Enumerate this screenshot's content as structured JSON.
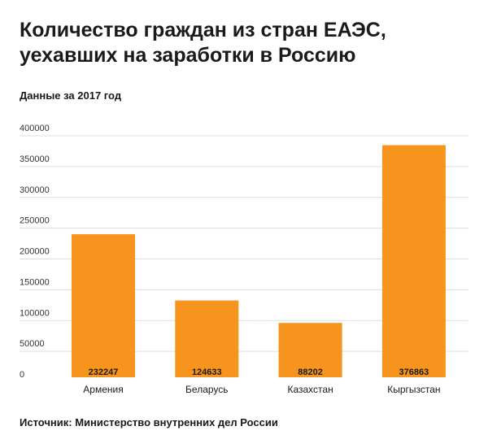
{
  "chart_data": {
    "type": "bar",
    "title": "Количество граждан из стран ЕАЭС, уехавших на заработки в Россию",
    "subtitle": "Данные за 2017 год",
    "source": "Источник: Министерство внутренних дел России",
    "categories": [
      "Армения",
      "Беларусь",
      "Казахстан",
      "Кыргызстан"
    ],
    "values": [
      232247,
      124633,
      88202,
      376863
    ],
    "data_labels": [
      "232247",
      "124633",
      "88202",
      "376863"
    ],
    "yticks": [
      0,
      50000,
      100000,
      150000,
      200000,
      250000,
      300000,
      350000,
      400000
    ],
    "ylim": [
      0,
      400000
    ],
    "grid": true,
    "bar_color": "#f7941d",
    "grid_color": "#dddddd"
  }
}
